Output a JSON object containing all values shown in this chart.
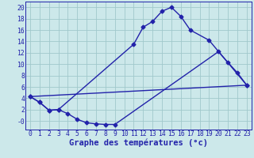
{
  "title": "Graphe des températures (°c)",
  "bg_color": "#cce8ea",
  "grid_color": "#a0c8cc",
  "line_color": "#2222aa",
  "line_width": 1.0,
  "marker": "D",
  "marker_size": 2.5,
  "xlim": [
    -0.5,
    23.5
  ],
  "ylim": [
    -1.5,
    21
  ],
  "xticks": [
    0,
    1,
    2,
    3,
    4,
    5,
    6,
    7,
    8,
    9,
    10,
    11,
    12,
    13,
    14,
    15,
    16,
    17,
    18,
    19,
    20,
    21,
    22,
    23
  ],
  "yticks": [
    0,
    2,
    4,
    6,
    8,
    10,
    12,
    14,
    16,
    18,
    20
  ],
  "ytick_labels": [
    "-0",
    "2",
    "4",
    "6",
    "8",
    "10",
    "12",
    "14",
    "16",
    "18",
    "20"
  ],
  "line1_x": [
    0,
    1,
    2,
    3,
    11,
    12,
    13,
    14,
    15,
    16,
    17,
    19,
    23
  ],
  "line1_y": [
    4.3,
    3.3,
    1.9,
    2.0,
    13.5,
    16.5,
    17.5,
    19.3,
    20.0,
    18.4,
    16.0,
    14.2,
    6.3
  ],
  "line2_x": [
    0,
    23
  ],
  "line2_y": [
    4.3,
    6.3
  ],
  "line3_x": [
    0,
    1,
    2,
    3,
    4,
    5,
    6,
    7,
    8,
    9,
    20,
    21,
    22,
    23
  ],
  "line3_y": [
    4.3,
    3.3,
    1.9,
    2.0,
    1.3,
    0.3,
    -0.3,
    -0.5,
    -0.6,
    -0.6,
    12.2,
    10.3,
    8.5,
    6.3
  ],
  "xlabel_fontsize": 7.5,
  "tick_fontsize": 5.8
}
